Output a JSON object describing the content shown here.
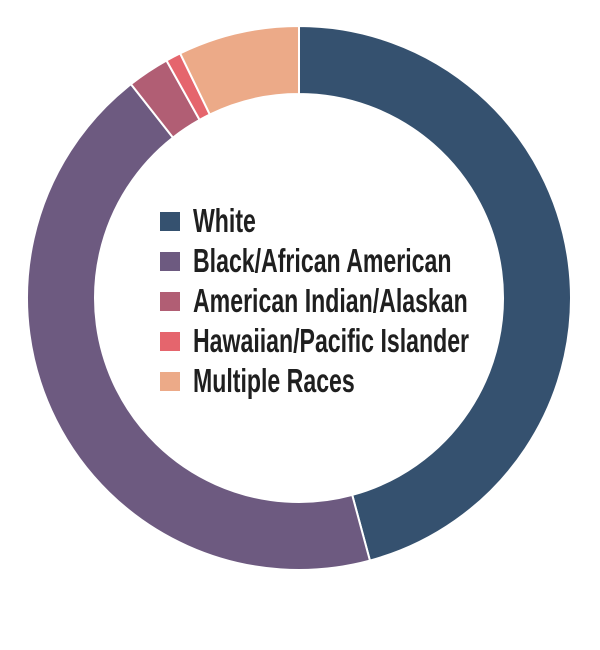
{
  "canvas": {
    "background": "#ffffff",
    "text_color": "#1f1f1f"
  },
  "chart_data": {
    "type": "pie",
    "subtype": "donut",
    "title": "",
    "legend_position": "center-of-donut",
    "direction": "clockwise",
    "start_angle_deg": 0,
    "donut_hole_ratio": 0.75,
    "separator_color": "#ffffff",
    "slices": [
      {
        "label": "White",
        "value": 45.8,
        "color": "#35516f"
      },
      {
        "label": "Black/African American",
        "value": 43.6,
        "color": "#6d5a80"
      },
      {
        "label": "American Indian/Alaskan",
        "value": 2.5,
        "color": "#b15e74"
      },
      {
        "label": "Hawaiian/Pacific Islander",
        "value": 0.9,
        "color": "#e5656d"
      },
      {
        "label": "Multiple Races",
        "value": 7.2,
        "color": "#ecaa88"
      }
    ]
  }
}
